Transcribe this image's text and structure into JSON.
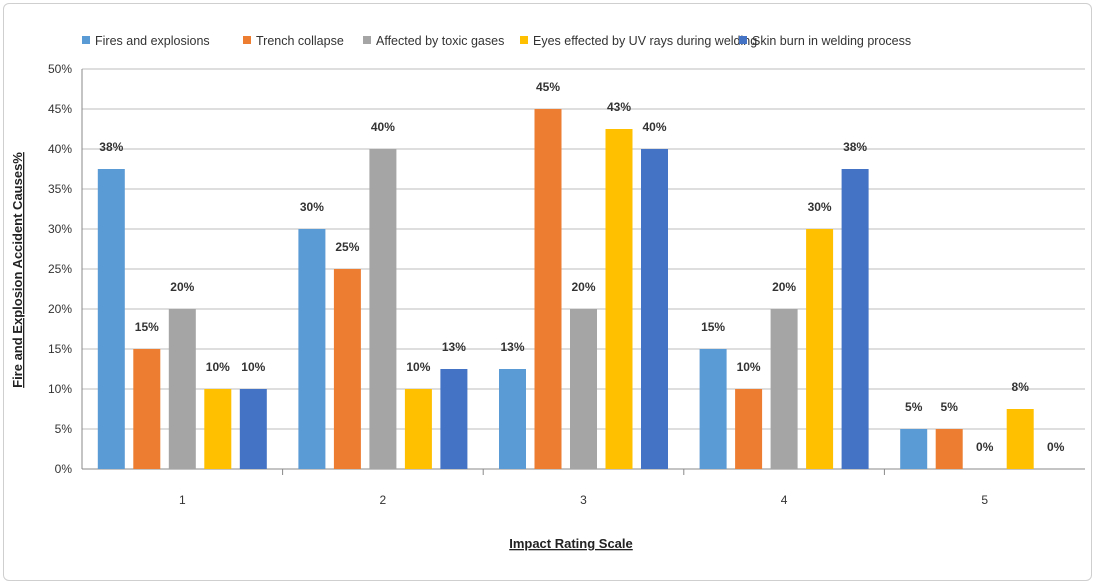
{
  "chart_data": {
    "type": "bar",
    "title": "",
    "xlabel": "Impact Rating Scale",
    "ylabel": "Fire and Explosion Accident Causes%",
    "ylim": [
      0,
      50
    ],
    "yticks": [
      "0%",
      "5%",
      "10%",
      "15%",
      "20%",
      "25%",
      "30%",
      "35%",
      "40%",
      "45%",
      "50%"
    ],
    "categories": [
      "1",
      "2",
      "3",
      "4",
      "5"
    ],
    "legend_position": "top",
    "grid": true,
    "series": [
      {
        "name": "Fires and explosions",
        "color": "#5b9bd5",
        "values": [
          37.5,
          30,
          12.5,
          15,
          5
        ],
        "labels": [
          "38%",
          "30%",
          "13%",
          "15%",
          "5%"
        ]
      },
      {
        "name": "Trench collapse",
        "color": "#ed7d31",
        "values": [
          15,
          25,
          45,
          10,
          5
        ],
        "labels": [
          "15%",
          "25%",
          "45%",
          "10%",
          "5%"
        ]
      },
      {
        "name": "Affected by toxic gases",
        "color": "#a5a5a5",
        "values": [
          20,
          40,
          20,
          20,
          0
        ],
        "labels": [
          "20%",
          "40%",
          "20%",
          "20%",
          "0%"
        ]
      },
      {
        "name": "Eyes effected by UV rays during welding",
        "color": "#ffc000",
        "values": [
          10,
          10,
          42.5,
          30,
          7.5
        ],
        "labels": [
          "10%",
          "10%",
          "43%",
          "30%",
          "8%"
        ]
      },
      {
        "name": "Skin burn in welding process",
        "color": "#4472c4",
        "values": [
          10,
          12.5,
          40,
          37.5,
          0
        ],
        "labels": [
          "10%",
          "13%",
          "40%",
          "38%",
          "0%"
        ]
      }
    ]
  }
}
